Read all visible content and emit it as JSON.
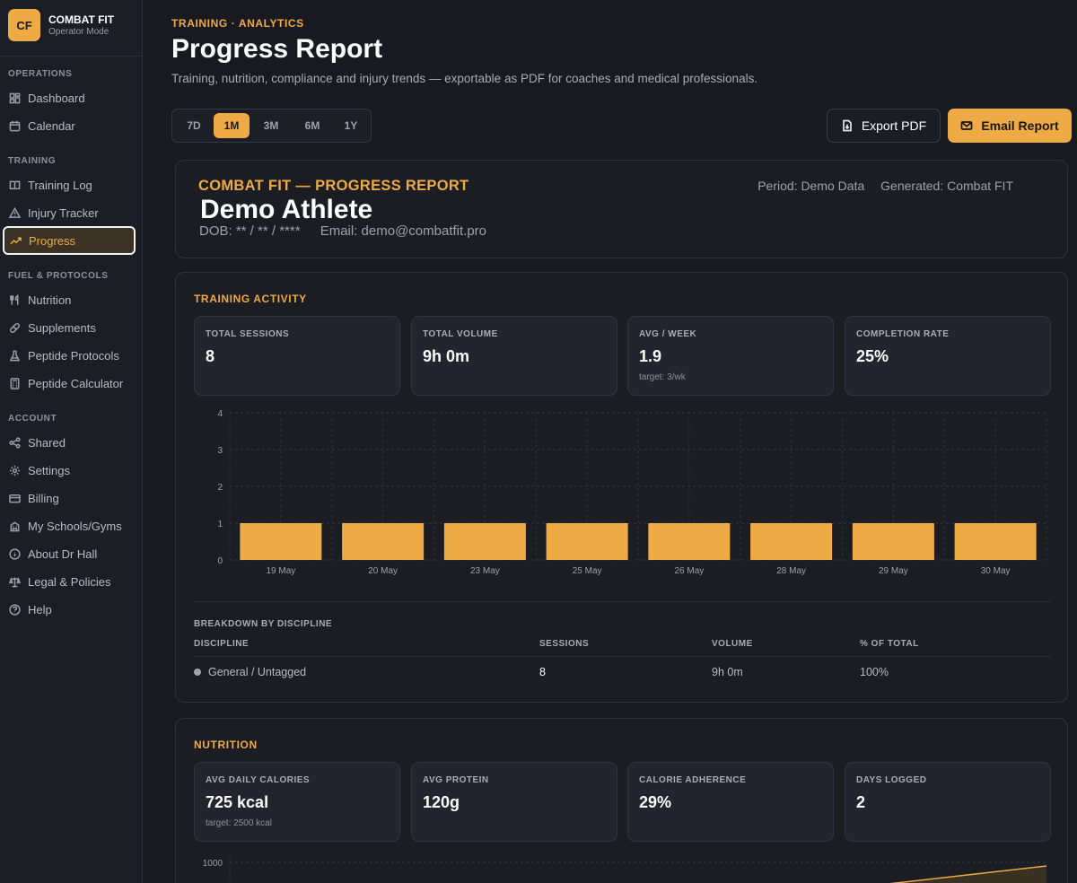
{
  "brand": {
    "logo": "CF",
    "name": "COMBAT FIT",
    "subtitle": "Operator Mode"
  },
  "sidebar": {
    "sections": [
      {
        "label": "OPERATIONS"
      },
      {
        "label": "TRAINING"
      },
      {
        "label": "FUEL & PROTOCOLS"
      },
      {
        "label": "ACCOUNT"
      }
    ],
    "items": [
      {
        "label": "Dashboard",
        "icon": "grid-icon"
      },
      {
        "label": "Calendar",
        "icon": "calendar-icon"
      },
      {
        "label": "Training Log",
        "icon": "book-icon"
      },
      {
        "label": "Injury Tracker",
        "icon": "warning-icon"
      },
      {
        "label": "Progress",
        "icon": "trend-icon",
        "active": true
      },
      {
        "label": "Nutrition",
        "icon": "utensils-icon"
      },
      {
        "label": "Supplements",
        "icon": "pill-icon"
      },
      {
        "label": "Peptide Protocols",
        "icon": "flask-icon"
      },
      {
        "label": "Peptide Calculator",
        "icon": "calculator-icon"
      },
      {
        "label": "Shared",
        "icon": "share-icon"
      },
      {
        "label": "Settings",
        "icon": "gear-icon"
      },
      {
        "label": "Billing",
        "icon": "card-icon"
      },
      {
        "label": "My Schools/Gyms",
        "icon": "building-icon"
      },
      {
        "label": "About Dr Hall",
        "icon": "info-icon"
      },
      {
        "label": "Legal & Policies",
        "icon": "scale-icon"
      },
      {
        "label": "Help",
        "icon": "help-icon"
      }
    ]
  },
  "header": {
    "eyebrow": "TRAINING · ANALYTICS",
    "title": "Progress Report",
    "subtitle": "Training, nutrition, compliance and injury trends — exportable as PDF for coaches and medical professionals."
  },
  "range": {
    "options": [
      "7D",
      "1M",
      "3M",
      "6M",
      "1Y"
    ],
    "selected": "1M"
  },
  "actions": {
    "export_label": "Export PDF",
    "email_label": "Email Report"
  },
  "report": {
    "title": "COMBAT FIT — PROGRESS REPORT",
    "period": "Period: Demo Data",
    "generated": "Generated: Combat FIT",
    "athlete": "Demo Athlete",
    "dob": "DOB: ** / ** / ****",
    "email": "Email: demo@combatfit.pro"
  },
  "training": {
    "title": "TRAINING ACTIVITY",
    "stats": [
      {
        "label": "TOTAL SESSIONS",
        "value": "8",
        "note": ""
      },
      {
        "label": "TOTAL VOLUME",
        "value": "9h 0m",
        "note": ""
      },
      {
        "label": "AVG / WEEK",
        "value": "1.9",
        "note": "target: 3/wk"
      },
      {
        "label": "COMPLETION RATE",
        "value": "25%",
        "note": ""
      }
    ],
    "breakdown": {
      "title": "BREAKDOWN BY DISCIPLINE",
      "columns": [
        "DISCIPLINE",
        "SESSIONS",
        "VOLUME",
        "% OF TOTAL"
      ],
      "rows": [
        {
          "discipline": "General / Untagged",
          "sessions": "8",
          "volume": "9h 0m",
          "pct": "100%"
        }
      ]
    }
  },
  "nutrition": {
    "title": "NUTRITION",
    "stats": [
      {
        "label": "AVG DAILY CALORIES",
        "value": "725 kcal",
        "note": "target: 2500 kcal"
      },
      {
        "label": "AVG PROTEIN",
        "value": "120g",
        "note": ""
      },
      {
        "label": "CALORIE ADHERENCE",
        "value": "29%",
        "note": ""
      },
      {
        "label": "DAYS LOGGED",
        "value": "2",
        "note": ""
      }
    ],
    "chart_top_tick": "1000"
  },
  "colors": {
    "accent": "#eeaa44",
    "background": "#181a20",
    "card": "#1b1d23"
  },
  "chart_data": {
    "type": "bar",
    "categories": [
      "19 May",
      "20 May",
      "23 May",
      "25 May",
      "26 May",
      "28 May",
      "29 May",
      "30 May"
    ],
    "values": [
      1,
      1,
      1,
      1,
      1,
      1,
      1,
      1
    ],
    "yticks": [
      0,
      1,
      2,
      3,
      4
    ],
    "ylim": [
      0,
      4
    ],
    "grid": true,
    "color": "#eeaa44"
  }
}
